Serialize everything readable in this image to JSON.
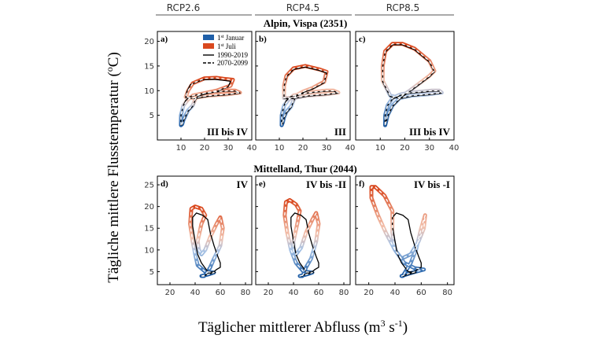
{
  "chart_data": {
    "type": "line",
    "column_headers": [
      "RCP2.6",
      "RCP4.5",
      "RCP8.5"
    ],
    "xlabel": "Täglicher mittlerer Abfluss (m",
    "xlabel_sup": "3",
    "xlabel_mid": " s",
    "xlabel_sup2": "-1",
    "xlabel_end": ")",
    "ylabel": "Tägliche mittlere Flusstemperatur (",
    "ylabel_sup": "o",
    "ylabel_end": "C)",
    "legend": [
      {
        "label": "1",
        "sup": "st",
        "rest": " Januar",
        "color": "#1f5fa8"
      },
      {
        "label": "1",
        "sup": "st",
        "rest": " Juli",
        "color": "#d9481e"
      },
      {
        "label": "1990-2019",
        "style": "solid"
      },
      {
        "label": "2070-2099",
        "style": "dashed"
      }
    ],
    "rows": [
      {
        "title": "Alpin, Vispa (2351)",
        "xlim": [
          0,
          40
        ],
        "ylim": [
          0,
          22
        ],
        "xticks": [
          10,
          20,
          30,
          40
        ],
        "yticks": [
          5,
          10,
          15,
          20
        ],
        "panels": [
          {
            "label": "a)",
            "annotation": "III bis IV",
            "future": {
              "x": [
                10,
                10,
                11,
                13,
                15,
                20,
                25,
                30,
                33,
                35,
                30,
                22,
                15,
                12,
                13,
                15,
                20,
                25,
                28,
                32,
                31,
                25,
                20,
                17,
                16,
                15,
                13,
                12,
                11,
                10.5,
                10
              ],
              "y": [
                3,
                5,
                7,
                8.2,
                9,
                9.5,
                9.8,
                10,
                10,
                9.6,
                9.3,
                9,
                8.5,
                8.7,
                10,
                11.5,
                12.5,
                12.6,
                12.4,
                12.2,
                11,
                10,
                9.5,
                9,
                8.2,
                7,
                6,
                5,
                4,
                3.2,
                3
              ]
            },
            "historic": {
              "x": [
                10,
                10,
                11,
                12,
                14,
                19,
                24,
                29,
                33,
                35,
                30,
                22,
                16,
                12,
                12.5,
                14,
                19,
                24,
                28,
                31,
                30,
                25,
                20,
                17,
                16,
                15,
                13,
                12,
                11,
                10.5,
                10
              ],
              "y": [
                3,
                5,
                7,
                8,
                8.8,
                9.4,
                9.7,
                9.9,
                9.9,
                9.5,
                9.2,
                8.9,
                8.4,
                8.6,
                9.8,
                11.2,
                12.2,
                12.3,
                12.1,
                11.9,
                10.8,
                9.8,
                9.3,
                8.8,
                8,
                6.8,
                5.8,
                4.8,
                3.8,
                3.1,
                3
              ]
            }
          },
          {
            "label": "b)",
            "annotation": "III",
            "future": {
              "x": [
                11,
                11,
                12,
                14,
                16,
                21,
                26,
                30,
                33,
                35,
                30,
                22,
                16,
                12,
                12,
                13,
                16,
                21,
                27,
                30,
                29,
                24,
                20,
                17,
                16,
                15,
                13,
                12,
                11.5,
                11
              ],
              "y": [
                3,
                5,
                7,
                8.2,
                9,
                9.5,
                9.8,
                10,
                10,
                9.6,
                9.3,
                9,
                8.5,
                8.5,
                11,
                13,
                14.5,
                15,
                14.3,
                13.8,
                11.8,
                10.5,
                9.8,
                9,
                8,
                6.8,
                5.7,
                4.6,
                3.6,
                3
              ]
            },
            "historic": {
              "x": [
                11,
                11,
                12,
                13,
                15,
                20,
                25,
                30,
                33,
                35,
                30,
                22,
                16,
                12,
                12,
                13,
                16,
                21,
                27,
                30,
                29,
                24,
                20,
                17,
                16,
                15,
                13,
                12,
                11.5,
                11
              ],
              "y": [
                3,
                5,
                7,
                8,
                8.8,
                9.4,
                9.7,
                9.9,
                9.9,
                9.5,
                9.2,
                8.9,
                8.4,
                8.4,
                10.8,
                12.8,
                14.3,
                14.8,
                14.1,
                13.6,
                11.6,
                10.3,
                9.6,
                8.8,
                7.8,
                6.6,
                5.5,
                4.4,
                3.4,
                3
              ]
            }
          },
          {
            "label": "c)",
            "annotation": "III bis IV",
            "future": {
              "x": [
                12,
                12,
                13,
                15,
                18,
                22,
                27,
                31,
                34,
                35,
                30,
                23,
                18,
                14,
                11,
                11,
                12,
                15,
                19,
                24,
                30,
                32,
                30,
                26,
                22,
                19,
                17,
                15,
                14,
                13,
                12.5,
                12
              ],
              "y": [
                3,
                5,
                7,
                8.5,
                9.2,
                9.6,
                9.8,
                10,
                10,
                9.6,
                9.3,
                9,
                8.5,
                9,
                12,
                15,
                18,
                19.5,
                19.5,
                18.5,
                16,
                14,
                13,
                11.5,
                10,
                9,
                8,
                7,
                6,
                5,
                4,
                3
              ]
            },
            "historic": {
              "x": [
                12,
                12,
                13,
                15,
                18,
                22,
                27,
                31,
                34,
                35,
                30,
                23,
                18,
                14,
                11,
                11,
                12,
                15,
                19,
                24,
                30,
                32,
                30,
                26,
                22,
                19,
                17,
                15,
                14,
                13,
                12.5,
                12
              ],
              "y": [
                3,
                5,
                7,
                8.3,
                9,
                9.5,
                9.7,
                9.9,
                9.9,
                9.5,
                9.2,
                8.9,
                8.4,
                8.8,
                11.8,
                14.8,
                17.8,
                19.3,
                19.3,
                18.3,
                15.8,
                13.8,
                12.8,
                11.3,
                9.8,
                8.8,
                7.8,
                6.8,
                5.8,
                4.8,
                3.8,
                3
              ]
            }
          }
        ]
      },
      {
        "title": "Mittelland, Thur (2044)",
        "xlim": [
          10,
          85
        ],
        "ylim": [
          2,
          27
        ],
        "xticks": [
          20,
          40,
          60,
          80
        ],
        "yticks": [
          5,
          10,
          15,
          20,
          25
        ],
        "panels": [
          {
            "label": "d)",
            "annotation": "IV",
            "future": {
              "x": [
                45,
                48,
                52,
                55,
                48,
                42,
                40,
                38,
                36,
                37,
                40,
                45,
                48,
                45,
                42,
                43,
                45,
                48,
                52,
                57,
                60,
                62,
                60,
                55,
                52,
                50,
                48,
                47
              ],
              "y": [
                4,
                4.2,
                4.5,
                4.8,
                5,
                6.5,
                9,
                12,
                16,
                19.5,
                20,
                19.5,
                18,
                16,
                12,
                10,
                9,
                10,
                13,
                16,
                17.5,
                15,
                11,
                8,
                6,
                5,
                4.3,
                4
              ]
            },
            "historic": {
              "x": [
                45,
                48,
                52,
                56,
                50,
                45,
                42,
                40,
                38,
                38,
                41,
                46,
                50,
                52,
                55,
                58,
                60,
                60,
                57,
                55,
                52,
                50,
                48,
                47
              ],
              "y": [
                4,
                4.2,
                4.5,
                4.8,
                5,
                7,
                9,
                12,
                15.5,
                17.5,
                18.5,
                18,
                17,
                14,
                11,
                8.5,
                7,
                6,
                5.5,
                5,
                4.8,
                4.5,
                4.2,
                4
              ]
            }
          },
          {
            "label": "e)",
            "annotation": "IV bis -II",
            "future": {
              "x": [
                45,
                48,
                52,
                55,
                48,
                42,
                38,
                35,
                33,
                34,
                37,
                42,
                45,
                43,
                40,
                40,
                42,
                46,
                50,
                55,
                58,
                60,
                58,
                54,
                50,
                48,
                47
              ],
              "y": [
                4,
                4.2,
                4.5,
                4.8,
                5,
                7,
                10,
                14,
                18,
                21,
                21.5,
                20.5,
                19,
                16,
                12,
                9.5,
                9,
                10.5,
                14,
                17,
                18.5,
                16,
                12,
                8,
                6,
                4.5,
                4
              ]
            },
            "historic": {
              "x": [
                45,
                48,
                52,
                56,
                50,
                45,
                42,
                40,
                38,
                38,
                41,
                46,
                50,
                52,
                55,
                58,
                60,
                60,
                57,
                55,
                52,
                50,
                48,
                47
              ],
              "y": [
                4,
                4.2,
                4.5,
                4.8,
                5,
                7,
                9,
                12,
                15.5,
                17.5,
                18.5,
                18,
                17,
                14,
                11,
                8.5,
                7,
                6,
                5.5,
                5,
                4.8,
                4.5,
                4.2,
                4
              ]
            }
          },
          {
            "label": "f)",
            "annotation": "IV bis -I",
            "future": {
              "x": [
                45,
                50,
                56,
                62,
                55,
                47,
                40,
                33,
                27,
                22,
                22,
                25,
                32,
                38,
                38,
                40,
                45,
                52,
                58,
                62,
                63,
                60,
                56,
                52,
                48,
                46
              ],
              "y": [
                4,
                4.5,
                5,
                5.5,
                5.8,
                7,
                10,
                14,
                18,
                22,
                24.5,
                24.5,
                22.5,
                19,
                14,
                10,
                8,
                9,
                12,
                15,
                18,
                15,
                10,
                7,
                5,
                4
              ]
            },
            "historic": {
              "x": [
                45,
                48,
                52,
                56,
                50,
                45,
                42,
                40,
                38,
                38,
                41,
                46,
                50,
                52,
                55,
                58,
                60,
                60,
                57,
                55,
                52,
                50,
                48,
                47
              ],
              "y": [
                4,
                4.2,
                4.5,
                4.8,
                5,
                7,
                9,
                12,
                15.5,
                17.5,
                18.5,
                18,
                17,
                14,
                11,
                8.5,
                7,
                6,
                5.5,
                5,
                4.8,
                4.5,
                4.2,
                4
              ]
            }
          }
        ]
      }
    ]
  }
}
